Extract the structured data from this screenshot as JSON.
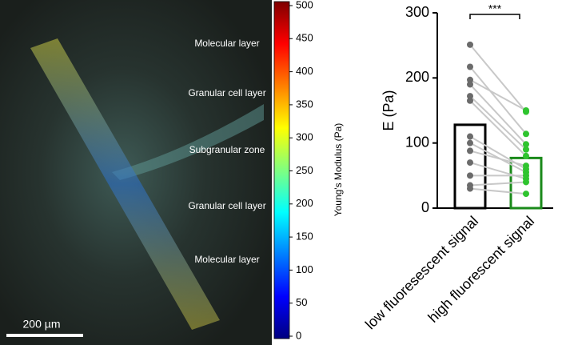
{
  "image": {
    "layers": [
      "Molecular layer",
      "Granular cell layer",
      "Subgranular zone",
      "Granular cell layer",
      "Molecular layer"
    ],
    "scale_bar": "200 µm"
  },
  "colorbar": {
    "label": "Young's Modulus (Pa)",
    "lim": [
      0,
      500
    ],
    "ticks": [
      0,
      50,
      100,
      150,
      200,
      250,
      300,
      350,
      400,
      450,
      500
    ]
  },
  "chart_data": {
    "type": "bar",
    "ylabel": "E (Pa)",
    "categories": [
      "low fluoresescent signal",
      "high fluorescent signal"
    ],
    "values": [
      128,
      77
    ],
    "colors": [
      "#000000",
      "#1a8a1a"
    ],
    "point_colors": [
      "#6b6b6b",
      "#2fc42f"
    ],
    "paired_values": [
      [
        251,
        217,
        197,
        190,
        172,
        165,
        110,
        100,
        88,
        70,
        50,
        35,
        30
      ],
      [
        148,
        114,
        150,
        98,
        90,
        80,
        60,
        55,
        65,
        45,
        50,
        40,
        22
      ]
    ],
    "ylim": [
      0,
      300
    ],
    "yticks": [
      0,
      100,
      200,
      300
    ],
    "annotation": "***"
  }
}
